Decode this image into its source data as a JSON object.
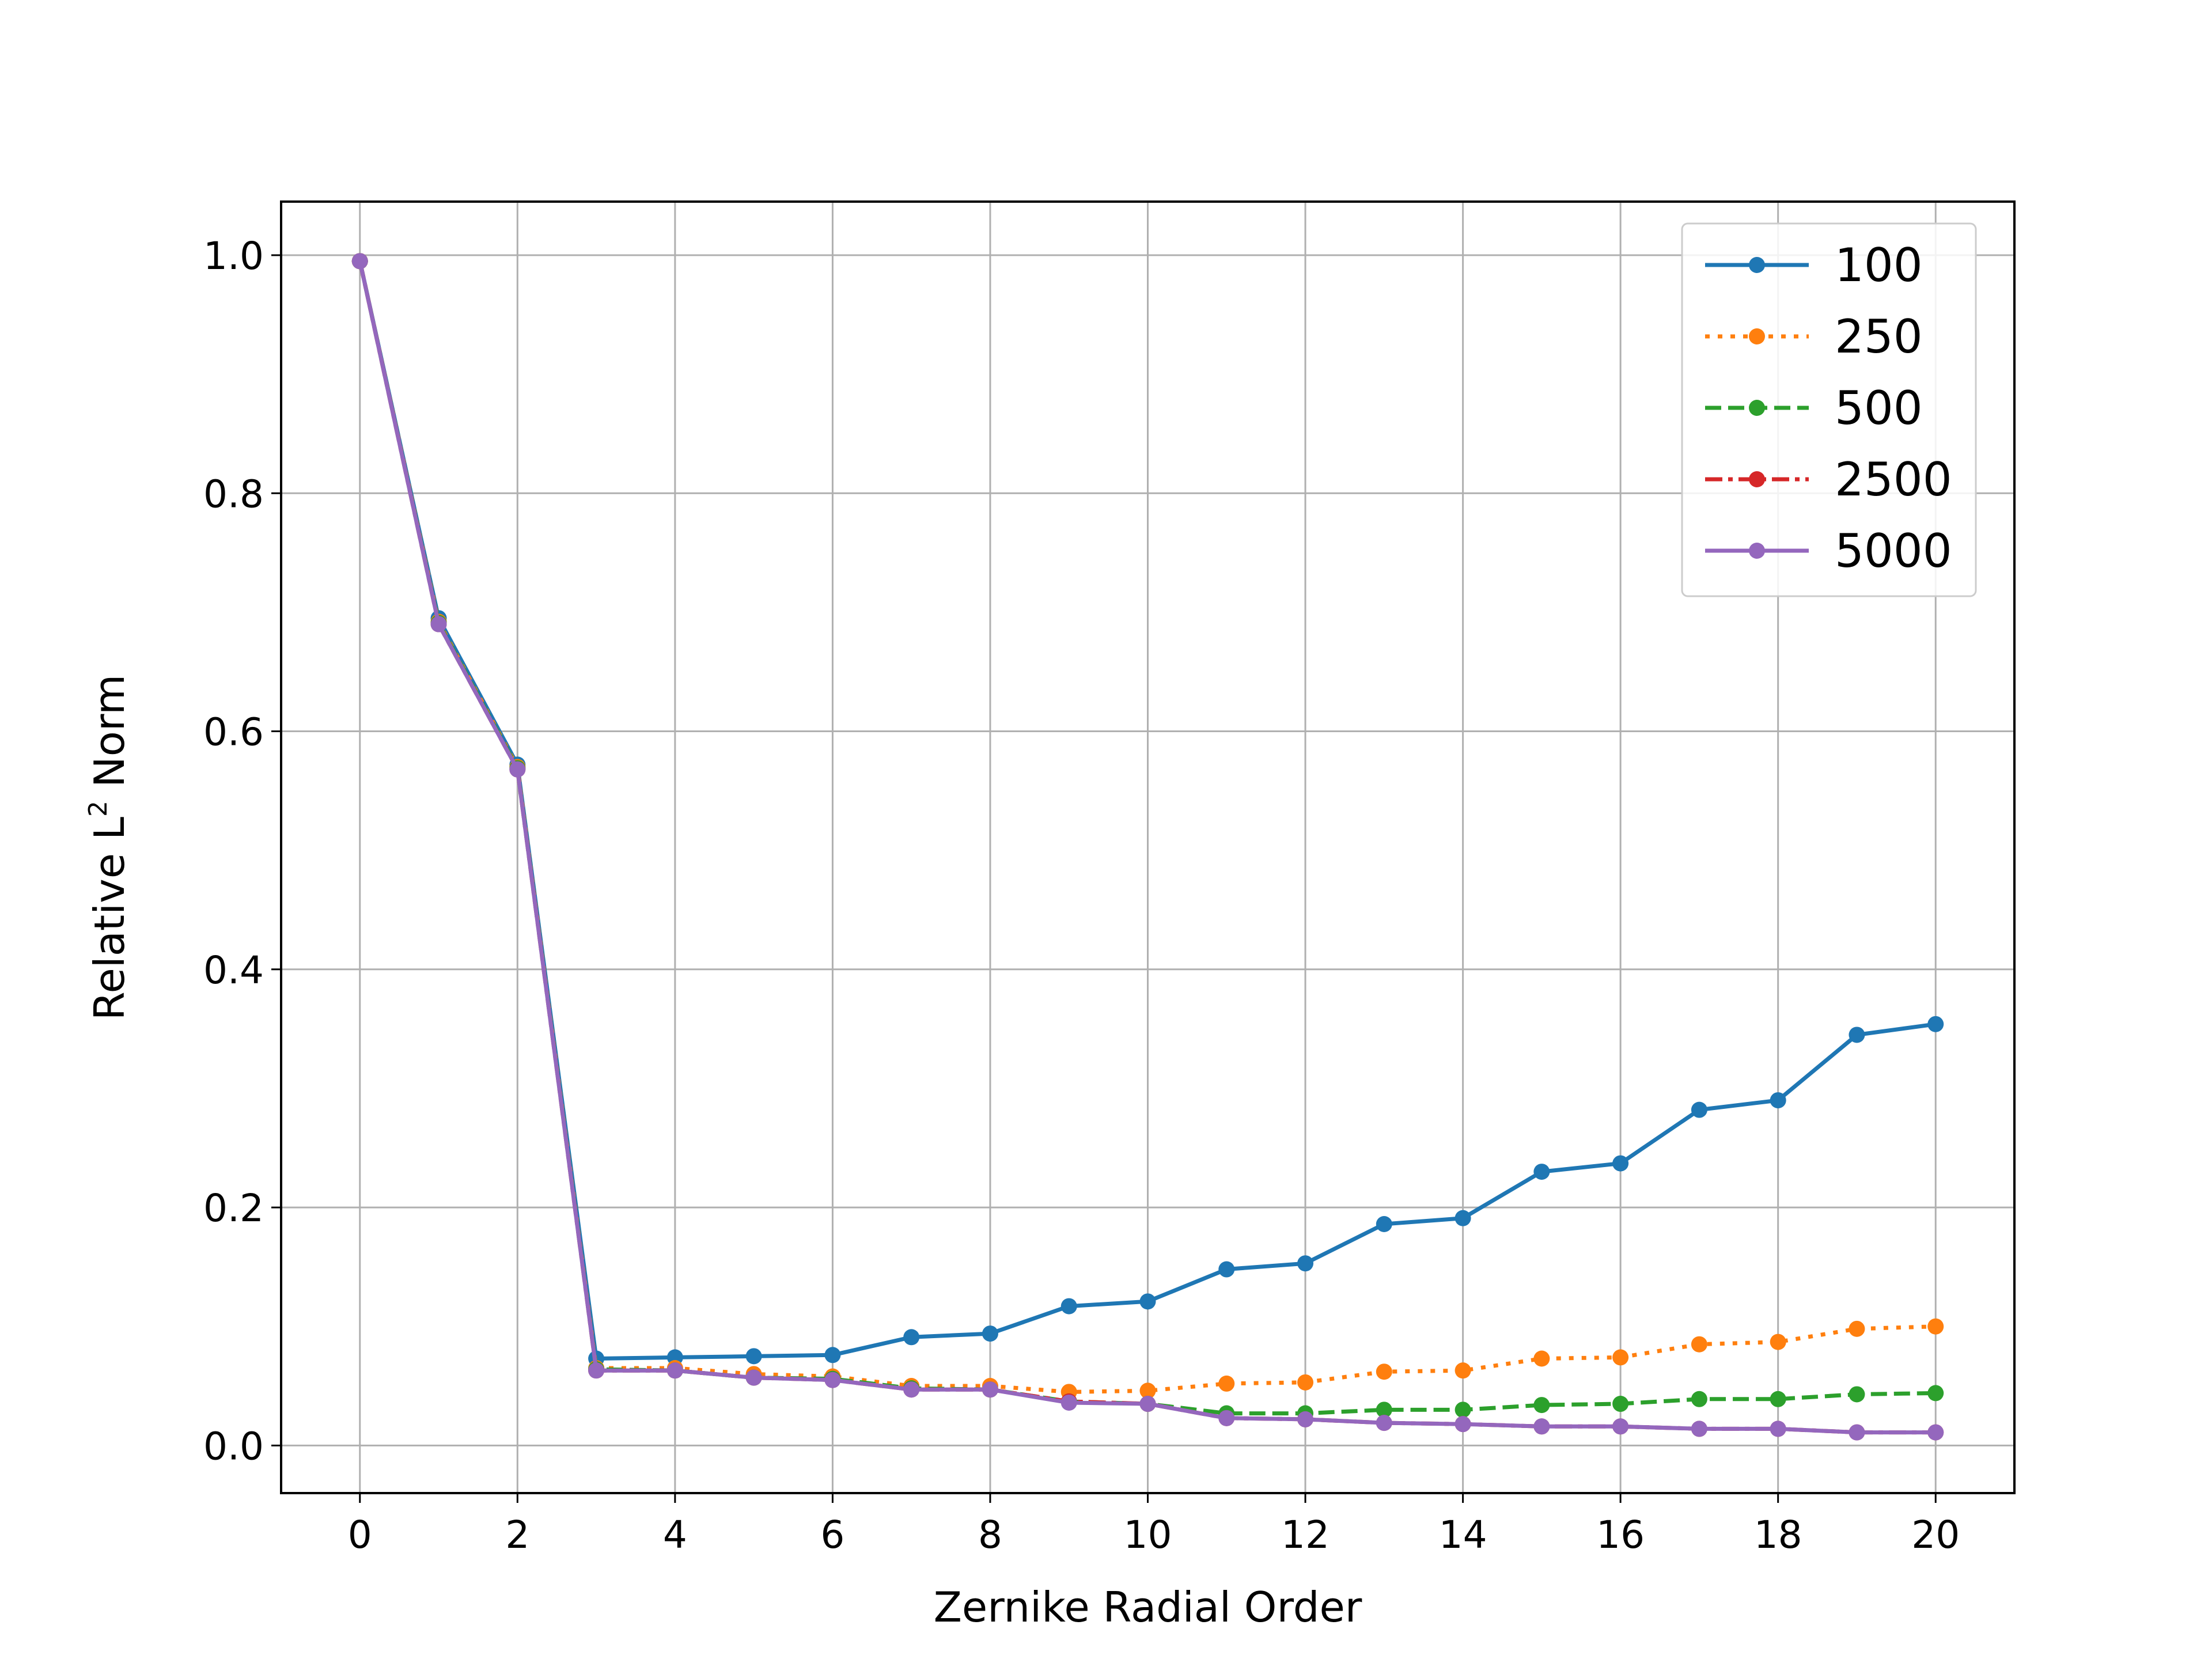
{
  "chart_data": {
    "type": "line",
    "title": "",
    "xlabel": "Zernike Radial Order",
    "ylabel_prefix": "Relative L",
    "ylabel_sup": "2",
    "ylabel_suffix": " Norm",
    "xlim": [
      -1,
      21
    ],
    "ylim": [
      -0.04,
      1.045
    ],
    "xticks": [
      0,
      2,
      4,
      6,
      8,
      10,
      12,
      14,
      16,
      18,
      20
    ],
    "xtick_labels": [
      "0",
      "2",
      "4",
      "6",
      "8",
      "10",
      "12",
      "14",
      "16",
      "18",
      "20"
    ],
    "yticks": [
      0.0,
      0.2,
      0.4,
      0.6,
      0.8,
      1.0
    ],
    "ytick_labels": [
      "0.0",
      "0.2",
      "0.4",
      "0.6",
      "0.8",
      "1.0"
    ],
    "grid": true,
    "legend_position": "top-right",
    "x": [
      0,
      1,
      2,
      3,
      4,
      5,
      6,
      7,
      8,
      9,
      10,
      11,
      12,
      13,
      14,
      15,
      16,
      17,
      18,
      19,
      20
    ],
    "series": [
      {
        "name": "100",
        "color": "#1f77b4",
        "linestyle": "solid",
        "values": [
          0.995,
          0.695,
          0.572,
          0.073,
          0.074,
          0.075,
          0.076,
          0.091,
          0.094,
          0.117,
          0.121,
          0.148,
          0.153,
          0.186,
          0.191,
          0.23,
          0.237,
          0.282,
          0.29,
          0.345,
          0.354
        ]
      },
      {
        "name": "250",
        "color": "#ff7f0e",
        "linestyle": "dotted",
        "values": [
          0.995,
          0.692,
          0.57,
          0.065,
          0.065,
          0.06,
          0.058,
          0.05,
          0.05,
          0.045,
          0.046,
          0.052,
          0.053,
          0.062,
          0.063,
          0.073,
          0.074,
          0.085,
          0.087,
          0.098,
          0.1
        ]
      },
      {
        "name": "500",
        "color": "#2ca02c",
        "linestyle": "dashed",
        "values": [
          0.995,
          0.691,
          0.569,
          0.064,
          0.063,
          0.057,
          0.056,
          0.048,
          0.047,
          0.037,
          0.035,
          0.027,
          0.027,
          0.03,
          0.03,
          0.034,
          0.035,
          0.039,
          0.039,
          0.043,
          0.044
        ]
      },
      {
        "name": "2500",
        "color": "#d62728",
        "linestyle": "dashdot",
        "values": [
          0.995,
          0.69,
          0.568,
          0.063,
          0.063,
          0.057,
          0.055,
          0.047,
          0.047,
          0.037,
          0.035,
          0.023,
          0.022,
          0.019,
          0.018,
          0.016,
          0.016,
          0.014,
          0.014,
          0.011,
          0.011
        ]
      },
      {
        "name": "5000",
        "color": "#9467bd",
        "linestyle": "solid",
        "values": [
          0.995,
          0.69,
          0.568,
          0.063,
          0.063,
          0.057,
          0.055,
          0.047,
          0.047,
          0.036,
          0.035,
          0.023,
          0.022,
          0.019,
          0.018,
          0.016,
          0.016,
          0.014,
          0.014,
          0.011,
          0.011
        ]
      }
    ]
  }
}
